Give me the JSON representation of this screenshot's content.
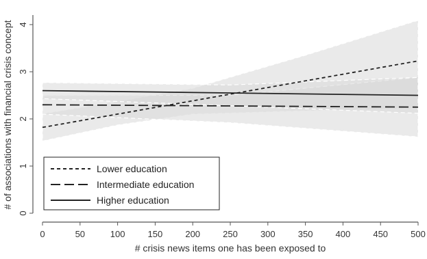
{
  "chart_data": {
    "type": "line",
    "xlabel": "# crisis news items one has been exposed to",
    "ylabel": "# of associations with financial crisis concept",
    "xlim": [
      0,
      500
    ],
    "ylim": [
      0,
      4
    ],
    "x_ticks": [
      "0",
      "50",
      "100",
      "150",
      "200",
      "250",
      "300",
      "350",
      "400",
      "450",
      "500"
    ],
    "y_ticks": [
      "0",
      "1",
      "2",
      "3",
      "4"
    ],
    "grid": false,
    "legend_position": "bottom-left",
    "series": [
      {
        "name": "Lower education",
        "line_style": "short-dash",
        "x": [
          0,
          500
        ],
        "y": [
          1.82,
          3.23
        ],
        "ci_lower": [
          1.53,
          1.87,
          2.1,
          2.17,
          2.23
        ],
        "ci_upper": [
          2.11,
          2.37,
          2.65,
          3.35,
          4.09
        ],
        "ci_x": [
          0,
          100,
          200,
          350,
          500
        ]
      },
      {
        "name": "Intermediate education",
        "line_style": "long-dash",
        "x": [
          0,
          500
        ],
        "y": [
          2.3,
          2.25
        ],
        "ci_lower": [
          2.1,
          1.92,
          1.62
        ],
        "ci_upper": [
          2.5,
          2.5,
          2.88
        ],
        "ci_x": [
          0,
          250,
          500
        ]
      },
      {
        "name": "Higher education",
        "line_style": "solid",
        "x": [
          0,
          500
        ],
        "y": [
          2.6,
          2.5
        ],
        "ci_lower": [
          2.43,
          2.28,
          2.12
        ],
        "ci_upper": [
          2.77,
          2.72,
          2.88
        ],
        "ci_x": [
          0,
          250,
          500
        ]
      }
    ]
  },
  "colors": {
    "line": "#222222",
    "ci_fill": "#d9d9d9",
    "ci_edge": "#ffffff",
    "axis": "#555555"
  }
}
